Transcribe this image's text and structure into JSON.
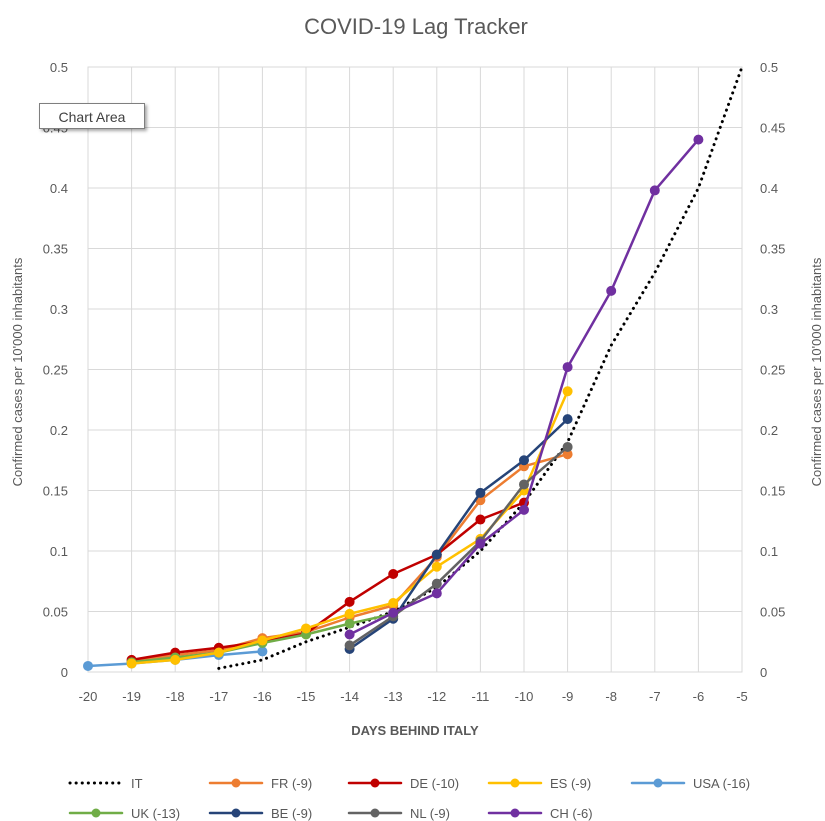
{
  "chart_data": {
    "type": "line",
    "title": "COVID-19 Lag Tracker",
    "xlabel": "DAYS BEHIND ITALY",
    "ylabel": "Confirmed  cases per 10'000 inhabitants",
    "ylabel_right": "Confirmed cases per 10'000 inhabitants",
    "xlim": [
      -20,
      -5
    ],
    "ylim": [
      0,
      0.5
    ],
    "x_ticks": [
      -20,
      -19,
      -18,
      -17,
      -16,
      -15,
      -14,
      -13,
      -12,
      -11,
      -10,
      -9,
      -8,
      -7,
      -6,
      -5
    ],
    "y_ticks": [
      0,
      0.05,
      0.1,
      0.15,
      0.2,
      0.25,
      0.3,
      0.35,
      0.4,
      0.45,
      0.5
    ],
    "y_tick_labels": [
      "0",
      "0.05",
      "0.1",
      "0.15",
      "0.2",
      "0.25",
      "0.3",
      "0.35",
      "0.4",
      "0.45",
      "0.5"
    ],
    "grid": true,
    "legend_position": "bottom",
    "series": [
      {
        "name": "IT",
        "color": "#000000",
        "style": "dotted",
        "markers": false,
        "x": [
          -17,
          -16,
          -15,
          -14,
          -13,
          -12,
          -11,
          -10,
          -9,
          -8,
          -7,
          -6,
          -5
        ],
        "y": [
          0.003,
          0.01,
          0.025,
          0.037,
          0.05,
          0.07,
          0.1,
          0.14,
          0.19,
          0.27,
          0.33,
          0.4,
          0.5
        ]
      },
      {
        "name": "FR (-9)",
        "color": "#ED7D31",
        "style": "solid",
        "markers": true,
        "x": [
          -19,
          -18,
          -17,
          -16,
          -15,
          -14,
          -13,
          -12,
          -11,
          -10,
          -9
        ],
        "y": [
          0.009,
          0.014,
          0.018,
          0.028,
          0.033,
          0.045,
          0.055,
          0.095,
          0.142,
          0.17,
          0.18
        ]
      },
      {
        "name": "DE (-10)",
        "color": "#C00000",
        "style": "solid",
        "markers": true,
        "x": [
          -19,
          -18,
          -17,
          -16,
          -15,
          -14,
          -13,
          -12,
          -11,
          -10
        ],
        "y": [
          0.01,
          0.016,
          0.02,
          0.025,
          0.032,
          0.058,
          0.081,
          0.097,
          0.126,
          0.14
        ]
      },
      {
        "name": "ES (-9)",
        "color": "#FFC000",
        "style": "solid",
        "markers": true,
        "x": [
          -19,
          -18,
          -17,
          -16,
          -15,
          -14,
          -13,
          -12,
          -11,
          -10,
          -9
        ],
        "y": [
          0.007,
          0.01,
          0.016,
          0.026,
          0.036,
          0.048,
          0.057,
          0.087,
          0.11,
          0.15,
          0.232
        ]
      },
      {
        "name": "USA (-16)",
        "color": "#5B9BD5",
        "style": "solid",
        "markers": true,
        "x": [
          -20,
          -19,
          -18,
          -17,
          -16
        ],
        "y": [
          0.005,
          0.007,
          0.01,
          0.014,
          0.017
        ]
      },
      {
        "name": "UK (-13)",
        "color": "#70AD47",
        "style": "solid",
        "markers": true,
        "x": [
          -19,
          -18,
          -17,
          -16,
          -15,
          -14,
          -13
        ],
        "y": [
          0.008,
          0.012,
          0.016,
          0.024,
          0.031,
          0.04,
          0.048
        ]
      },
      {
        "name": "BE (-9)",
        "color": "#264478",
        "style": "solid",
        "markers": true,
        "x": [
          -14,
          -13,
          -12,
          -11,
          -10,
          -9
        ],
        "y": [
          0.019,
          0.044,
          0.097,
          0.148,
          0.175,
          0.209
        ]
      },
      {
        "name": "NL (-9)",
        "color": "#636363",
        "style": "solid",
        "markers": true,
        "x": [
          -14,
          -13,
          -12,
          -11,
          -10,
          -9
        ],
        "y": [
          0.022,
          0.046,
          0.073,
          0.108,
          0.155,
          0.186
        ]
      },
      {
        "name": "CH (-6)",
        "color": "#7030A0",
        "style": "solid",
        "markers": true,
        "x": [
          -14,
          -13,
          -12,
          -11,
          -10,
          -9,
          -8,
          -7,
          -6
        ],
        "y": [
          0.031,
          0.049,
          0.065,
          0.106,
          0.134,
          0.252,
          0.315,
          0.398,
          0.44
        ]
      }
    ]
  },
  "tooltip": {
    "label": "Chart Area"
  }
}
